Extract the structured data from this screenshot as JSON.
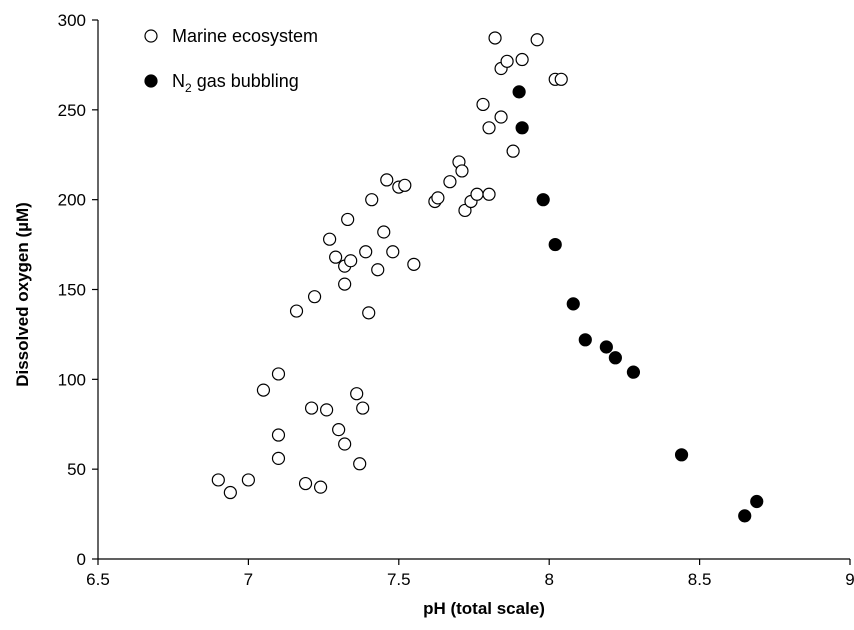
{
  "chart_data": {
    "type": "scatter",
    "title": "",
    "xlabel": "pH (total scale)",
    "ylabel": "Dissolved oxygen (µM)",
    "xlim": [
      6.5,
      9
    ],
    "ylim": [
      0,
      300
    ],
    "xticks": [
      6.5,
      7,
      7.5,
      8,
      8.5,
      9
    ],
    "xtick_labels": [
      "6.5",
      "7",
      "7.5",
      "8",
      "8.5",
      "9"
    ],
    "yticks": [
      0,
      50,
      100,
      150,
      200,
      250,
      300
    ],
    "ytick_labels": [
      "0",
      "50",
      "100",
      "150",
      "200",
      "250",
      "300"
    ],
    "grid": false,
    "legend": "top-left",
    "series": [
      {
        "name": "Marine ecosystem",
        "marker": "open-circle",
        "color": "#000000",
        "points": [
          [
            6.9,
            44
          ],
          [
            6.94,
            37
          ],
          [
            7.0,
            44
          ],
          [
            7.05,
            94
          ],
          [
            7.1,
            103
          ],
          [
            7.1,
            69
          ],
          [
            7.1,
            56
          ],
          [
            7.16,
            138
          ],
          [
            7.19,
            42
          ],
          [
            7.21,
            84
          ],
          [
            7.22,
            146
          ],
          [
            7.24,
            40
          ],
          [
            7.26,
            83
          ],
          [
            7.27,
            178
          ],
          [
            7.29,
            168
          ],
          [
            7.3,
            72
          ],
          [
            7.32,
            64
          ],
          [
            7.32,
            153
          ],
          [
            7.32,
            163
          ],
          [
            7.33,
            189
          ],
          [
            7.34,
            166
          ],
          [
            7.36,
            92
          ],
          [
            7.37,
            53
          ],
          [
            7.38,
            84
          ],
          [
            7.39,
            171
          ],
          [
            7.4,
            137
          ],
          [
            7.41,
            200
          ],
          [
            7.43,
            161
          ],
          [
            7.45,
            182
          ],
          [
            7.46,
            211
          ],
          [
            7.48,
            171
          ],
          [
            7.5,
            207
          ],
          [
            7.52,
            208
          ],
          [
            7.55,
            164
          ],
          [
            7.62,
            199
          ],
          [
            7.63,
            201
          ],
          [
            7.67,
            210
          ],
          [
            7.7,
            221
          ],
          [
            7.71,
            216
          ],
          [
            7.72,
            194
          ],
          [
            7.74,
            199
          ],
          [
            7.76,
            203
          ],
          [
            7.78,
            253
          ],
          [
            7.8,
            240
          ],
          [
            7.8,
            203
          ],
          [
            7.82,
            290
          ],
          [
            7.84,
            246
          ],
          [
            7.84,
            273
          ],
          [
            7.86,
            277
          ],
          [
            7.88,
            227
          ],
          [
            7.91,
            278
          ],
          [
            7.96,
            289
          ],
          [
            8.02,
            267
          ],
          [
            8.04,
            267
          ]
        ]
      },
      {
        "name": "N2 gas bubbling",
        "name_main": "N",
        "name_sub": "2",
        "name_rest": " gas bubbling",
        "marker": "filled-circle",
        "color": "#000000",
        "points": [
          [
            7.9,
            260
          ],
          [
            7.91,
            240
          ],
          [
            7.98,
            200
          ],
          [
            8.02,
            175
          ],
          [
            8.08,
            142
          ],
          [
            8.12,
            122
          ],
          [
            8.19,
            118
          ],
          [
            8.22,
            112
          ],
          [
            8.28,
            104
          ],
          [
            8.44,
            58
          ],
          [
            8.65,
            24
          ],
          [
            8.69,
            32
          ]
        ]
      }
    ]
  }
}
